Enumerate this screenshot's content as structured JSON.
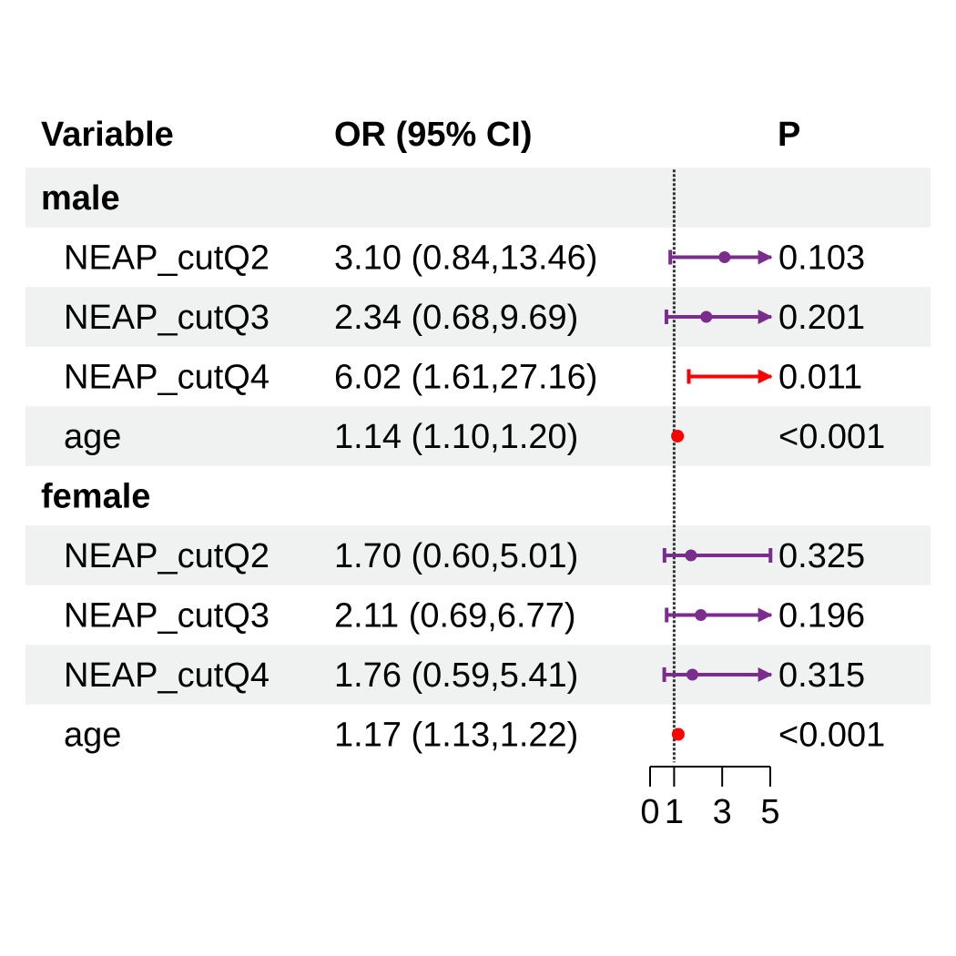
{
  "chart_data": {
    "type": "forest",
    "columns": {
      "variable": "Variable",
      "or": "OR (95% CI)",
      "p": "P"
    },
    "reference_line": 1,
    "xaxis": {
      "ticks": [
        0,
        1,
        3,
        5
      ],
      "range": [
        0,
        5
      ]
    },
    "colors": {
      "nonsig": "#7B2D8E",
      "sig": "#FF0000",
      "band": "#EFF2F1",
      "refline": "#333333"
    },
    "groups": [
      {
        "name": "male",
        "rows": [
          {
            "label": "NEAP_cutQ2",
            "or_text": "3.10 (0.84,13.46)",
            "or": 3.1,
            "lo": 0.84,
            "hi": 13.46,
            "p": "0.103",
            "sig": false
          },
          {
            "label": "NEAP_cutQ3",
            "or_text": "2.34 (0.68,9.69)",
            "or": 2.34,
            "lo": 0.68,
            "hi": 9.69,
            "p": "0.201",
            "sig": false
          },
          {
            "label": "NEAP_cutQ4",
            "or_text": "6.02 (1.61,27.16)",
            "or": 6.02,
            "lo": 1.61,
            "hi": 27.16,
            "p": "0.011",
            "sig": true
          },
          {
            "label": "age",
            "or_text": "1.14 (1.10,1.20)",
            "or": 1.14,
            "lo": 1.1,
            "hi": 1.2,
            "p": "<0.001",
            "sig": true
          }
        ]
      },
      {
        "name": "female",
        "rows": [
          {
            "label": "NEAP_cutQ2",
            "or_text": "1.70 (0.60,5.01)",
            "or": 1.7,
            "lo": 0.6,
            "hi": 5.01,
            "p": "0.325",
            "sig": false
          },
          {
            "label": "NEAP_cutQ3",
            "or_text": "2.11 (0.69,6.77)",
            "or": 2.11,
            "lo": 0.69,
            "hi": 6.77,
            "p": "0.196",
            "sig": false
          },
          {
            "label": "NEAP_cutQ4",
            "or_text": "1.76 (0.59,5.41)",
            "or": 1.76,
            "lo": 0.59,
            "hi": 5.41,
            "p": "0.315",
            "sig": false
          },
          {
            "label": "age",
            "or_text": "1.17 (1.13,1.22)",
            "or": 1.17,
            "lo": 1.13,
            "hi": 1.22,
            "p": "<0.001",
            "sig": true
          }
        ]
      }
    ]
  }
}
